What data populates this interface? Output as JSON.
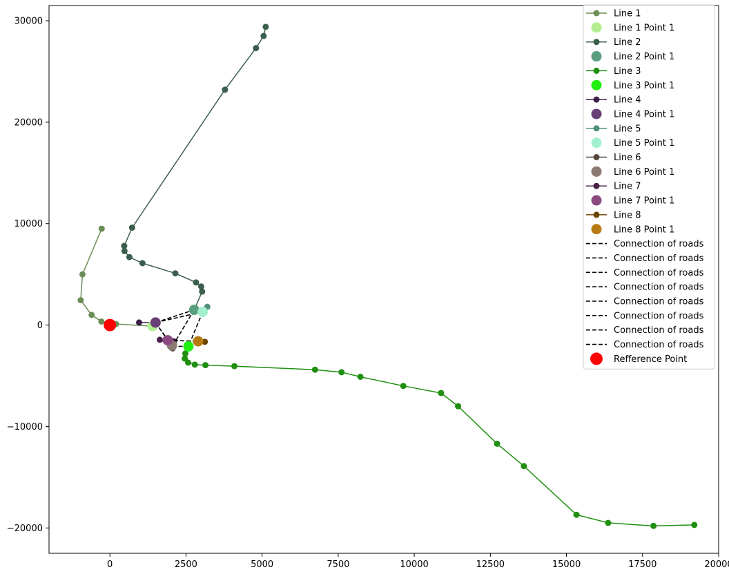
{
  "chart_data": {
    "type": "line",
    "title": "",
    "xlabel": "",
    "ylabel": "",
    "xlim": [
      -2000,
      20000
    ],
    "ylim": [
      -22500,
      31500
    ],
    "xticks": [
      0,
      2500,
      5000,
      7500,
      10000,
      12500,
      15000,
      17500,
      20000
    ],
    "yticks": [
      -20000,
      -10000,
      0,
      10000,
      20000,
      30000
    ],
    "grid": false,
    "legend_position": "top-right",
    "series": [
      {
        "name": "Line 1",
        "color": "#6b8e57",
        "x": [
          -270,
          -900,
          -960,
          -600,
          -280,
          200,
          1400
        ],
        "y": [
          9500,
          5000,
          2450,
          1000,
          350,
          100,
          -100
        ],
        "point": {
          "name": "Line 1 Point 1",
          "color": "#b2ee90",
          "x": 1400,
          "y": -100
        }
      },
      {
        "name": "Line 2",
        "color": "#3b5e4d",
        "x": [
          5120,
          5050,
          4800,
          3780,
          730,
          470,
          480,
          640,
          1070,
          2150,
          2830,
          3000,
          3030,
          2770
        ],
        "y": [
          29400,
          28500,
          27300,
          23200,
          9600,
          7800,
          7300,
          6700,
          6100,
          5100,
          4200,
          3800,
          3300,
          1500
        ],
        "point": {
          "name": "Line 2 Point 1",
          "color": "#5a9e80",
          "x": 2770,
          "y": 1500
        }
      },
      {
        "name": "Line 3",
        "color": "#1f8f10",
        "x": [
          2580,
          2480,
          2460,
          2570,
          2790,
          3140,
          4090,
          6740,
          7610,
          8230,
          9640,
          10880,
          11440,
          12720,
          13600,
          15330,
          16370,
          17860,
          19200
        ],
        "y": [
          -2200,
          -2800,
          -3300,
          -3700,
          -3900,
          -3950,
          -4050,
          -4400,
          -4650,
          -5100,
          -6000,
          -6700,
          -8000,
          -11700,
          -13900,
          -18700,
          -19500,
          -19800,
          -19700
        ],
        "point": {
          "name": "Line 3 Point 1",
          "color": "#22ee11",
          "x": 2580,
          "y": -2100
        }
      },
      {
        "name": "Line 4",
        "color": "#3f1f4a",
        "x": [
          960,
          1500
        ],
        "y": [
          250,
          250
        ],
        "point": {
          "name": "Line 4 Point 1",
          "color": "#6a3e76",
          "x": 1500,
          "y": 250
        }
      },
      {
        "name": "Line 5",
        "color": "#4f9080",
        "x": [
          3200,
          3100
        ],
        "y": [
          1800,
          1350
        ],
        "point": {
          "name": "Line 5 Point 1",
          "color": "#a3f0d0",
          "x": 3050,
          "y": 1300
        }
      },
      {
        "name": "Line 6",
        "color": "#54463e",
        "x": [
          2050,
          2060
        ],
        "y": [
          -2100,
          -2300
        ],
        "point": {
          "name": "Line 6 Point 1",
          "color": "#8b7a72",
          "x": 2040,
          "y": -2000
        }
      },
      {
        "name": "Line 7",
        "color": "#4a1f4a",
        "x": [
          1640,
          1820,
          1950,
          2100
        ],
        "y": [
          -1450,
          -1500,
          -1500,
          -1600
        ],
        "point": {
          "name": "Line 7 Point 1",
          "color": "#8a4a80",
          "x": 1900,
          "y": -1500
        }
      },
      {
        "name": "Line 8",
        "color": "#6b4400",
        "x": [
          3120,
          2900
        ],
        "y": [
          -1650,
          -1600
        ],
        "point": {
          "name": "Line 8 Point 1",
          "color": "#b77a12",
          "x": 2900,
          "y": -1600
        }
      }
    ],
    "connections": {
      "name": "Connection of roads",
      "color": "#000000",
      "segments": [
        [
          [
            1500,
            250
          ],
          [
            2770,
            1500
          ]
        ],
        [
          [
            1500,
            250
          ],
          [
            3050,
            1300
          ]
        ],
        [
          [
            1500,
            250
          ],
          [
            2050,
            -2100
          ]
        ],
        [
          [
            1500,
            250
          ],
          [
            1900,
            -1500
          ]
        ],
        [
          [
            2770,
            1500
          ],
          [
            2050,
            -2100
          ]
        ],
        [
          [
            3050,
            1300
          ],
          [
            2580,
            -2100
          ]
        ],
        [
          [
            1900,
            -1500
          ],
          [
            2900,
            -1600
          ]
        ],
        [
          [
            2050,
            -2100
          ],
          [
            2580,
            -2100
          ]
        ]
      ]
    },
    "reference_point": {
      "name": "Refference Point",
      "color": "#ff0000",
      "x": 0,
      "y": 0
    }
  }
}
